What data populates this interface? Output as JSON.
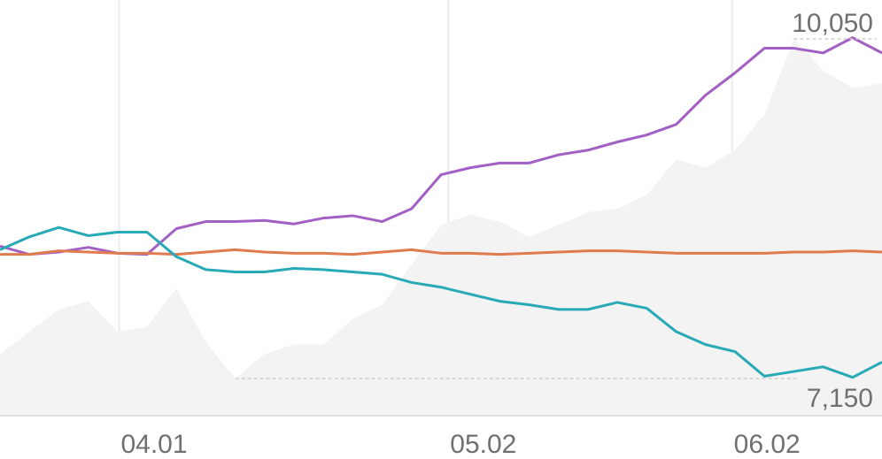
{
  "chart_data": {
    "type": "line",
    "x": [
      0,
      2,
      4,
      6,
      8,
      10,
      12,
      14,
      16,
      18,
      20,
      22,
      24,
      26,
      28,
      30,
      32,
      34,
      36,
      38,
      40,
      42,
      44,
      46,
      48,
      50,
      52,
      54,
      56,
      58,
      60
    ],
    "xlim": [
      0,
      60
    ],
    "xticks": [
      {
        "value": 8.1,
        "label": "04.01"
      },
      {
        "value": 30.5,
        "label": "05.02"
      },
      {
        "value": 49.8,
        "label": "06.02"
      }
    ],
    "ylim": [
      6833,
      10382
    ],
    "grid": true,
    "series": [
      {
        "style": "area",
        "color": "#f3f3f3",
        "values": [
          7360,
          7550,
          7740,
          7810,
          7550,
          7590,
          7920,
          7460,
          7150,
          7360,
          7440,
          7440,
          7660,
          7780,
          8120,
          8460,
          8550,
          8490,
          8360,
          8460,
          8570,
          8600,
          8720,
          9020,
          8950,
          9100,
          9400,
          10050,
          9780,
          9630,
          9670
        ]
      },
      {
        "style": "line",
        "color": "#a25fc4",
        "values": [
          8280,
          8210,
          8230,
          8270,
          8220,
          8210,
          8430,
          8490,
          8490,
          8500,
          8470,
          8520,
          8540,
          8490,
          8600,
          8890,
          8950,
          8990,
          8990,
          9060,
          9100,
          9170,
          9230,
          9320,
          9570,
          9760,
          9970,
          9970,
          9930,
          10060,
          9930
        ]
      },
      {
        "style": "line",
        "color": "#e07b4f",
        "values": [
          8210,
          8210,
          8240,
          8230,
          8220,
          8220,
          8210,
          8230,
          8250,
          8230,
          8220,
          8220,
          8210,
          8230,
          8250,
          8220,
          8220,
          8210,
          8220,
          8230,
          8240,
          8240,
          8230,
          8220,
          8220,
          8220,
          8220,
          8230,
          8230,
          8240,
          8230
        ]
      },
      {
        "style": "line",
        "color": "#27aab5",
        "values": [
          8250,
          8360,
          8440,
          8370,
          8400,
          8400,
          8190,
          8080,
          8060,
          8060,
          8090,
          8080,
          8060,
          8040,
          7970,
          7930,
          7870,
          7810,
          7780,
          7740,
          7740,
          7800,
          7750,
          7550,
          7440,
          7380,
          7170,
          7210,
          7250,
          7160,
          7290
        ]
      }
    ],
    "annotations": [
      {
        "value": 10050,
        "label": "10,050"
      },
      {
        "value": 7150,
        "label": "7,150"
      }
    ]
  }
}
